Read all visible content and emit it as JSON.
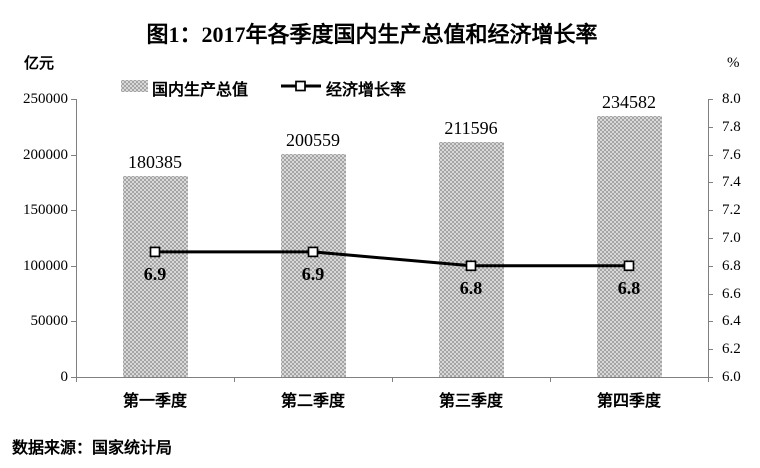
{
  "title": "图1：2017年各季度国内生产总值和经济增长率",
  "left_axis_unit": "亿元",
  "right_axis_unit": "%",
  "legend": {
    "bar_label": "国内生产总值",
    "line_label": "经济增长率"
  },
  "source": "数据来源：国家统计局",
  "colors": {
    "bar_fill": "#a5a5a5",
    "bar_dot": "#ffffff",
    "axis_line": "#808080",
    "growth_line": "#000000",
    "marker_fill": "#ffffff",
    "text": "#000000"
  },
  "chart_data": {
    "type": "bar+line",
    "title": "图1：2017年各季度国内生产总值和经济增长率",
    "categories": [
      "第一季度",
      "第二季度",
      "第三季度",
      "第四季度"
    ],
    "series": [
      {
        "name": "国内生产总值",
        "type": "bar",
        "axis": "left",
        "unit": "亿元",
        "values": [
          180385,
          200559,
          211596,
          234582
        ]
      },
      {
        "name": "经济增长率",
        "type": "line",
        "axis": "right",
        "unit": "%",
        "values": [
          6.9,
          6.9,
          6.8,
          6.8
        ]
      }
    ],
    "left_axis": {
      "label": "亿元",
      "min": 0,
      "max": 250000,
      "tick_step": 50000,
      "ticks": [
        0,
        50000,
        100000,
        150000,
        200000,
        250000
      ]
    },
    "right_axis": {
      "label": "%",
      "min": 6.0,
      "max": 8.0,
      "tick_step": 0.2,
      "ticks": [
        6.0,
        6.2,
        6.4,
        6.6,
        6.8,
        7.0,
        7.2,
        7.4,
        7.6,
        7.8,
        8.0
      ]
    },
    "grid": false,
    "legend_position": "top",
    "data_labels": true
  }
}
